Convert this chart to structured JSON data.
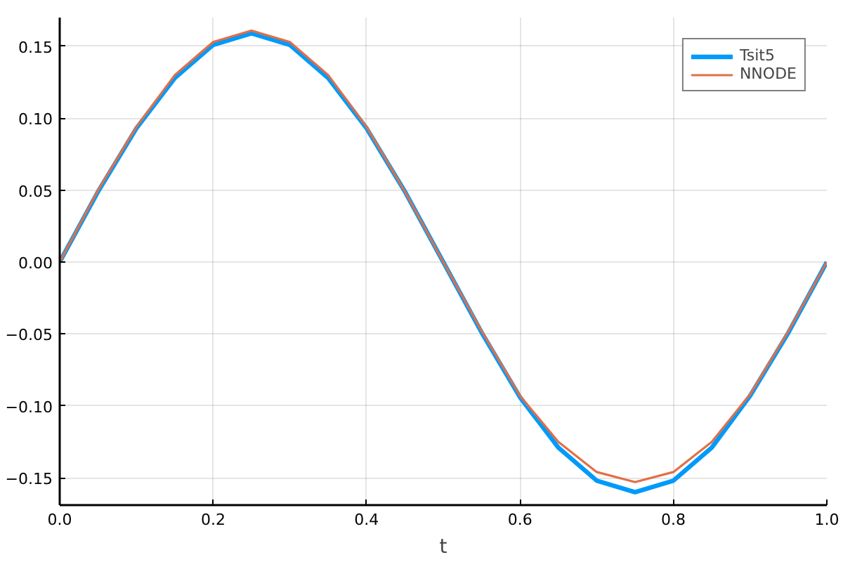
{
  "chart_data": {
    "type": "line",
    "xlabel": "t",
    "x": [
      0,
      0.05,
      0.1,
      0.15,
      0.2,
      0.25,
      0.3,
      0.35,
      0.4,
      0.45,
      0.5,
      0.55,
      0.6,
      0.65,
      0.7,
      0.75,
      0.8,
      0.85,
      0.9,
      0.95,
      1.0
    ],
    "series": [
      {
        "name": "Tsit5",
        "color": "#009af9",
        "values": [
          0,
          0.049,
          0.093,
          0.128,
          0.151,
          0.159,
          0.151,
          0.128,
          0.093,
          0.049,
          0.0,
          -0.049,
          -0.094,
          -0.129,
          -0.152,
          -0.16,
          -0.152,
          -0.129,
          -0.093,
          -0.049,
          0
        ]
      },
      {
        "name": "NNODE",
        "color": "#e26f46",
        "values": [
          0,
          0.05,
          0.094,
          0.13,
          0.153,
          0.161,
          0.153,
          0.13,
          0.094,
          0.049,
          0.0,
          -0.048,
          -0.093,
          -0.125,
          -0.146,
          -0.153,
          -0.146,
          -0.125,
          -0.092,
          -0.048,
          0
        ]
      }
    ],
    "xlim": [
      0,
      1
    ],
    "ylim": [
      -0.169,
      0.17
    ],
    "xticks": [
      {
        "value": 0,
        "label": "0.0"
      },
      0.2,
      0.4,
      0.6,
      0.8,
      {
        "value": 1,
        "label": "1.0"
      }
    ],
    "yticks": [
      {
        "value": -0.15,
        "label": "−0.15"
      },
      {
        "value": -0.1,
        "label": "−0.10"
      },
      {
        "value": -0.05,
        "label": "−0.05"
      },
      {
        "value": 0,
        "label": "0.00"
      },
      {
        "value": 0.05,
        "label": "0.05"
      },
      {
        "value": 0.1,
        "label": "0.10"
      },
      {
        "value": 0.15,
        "label": "0.15"
      }
    ],
    "grid": true,
    "legend": "top right",
    "line_style": "solid",
    "marker": "none"
  }
}
